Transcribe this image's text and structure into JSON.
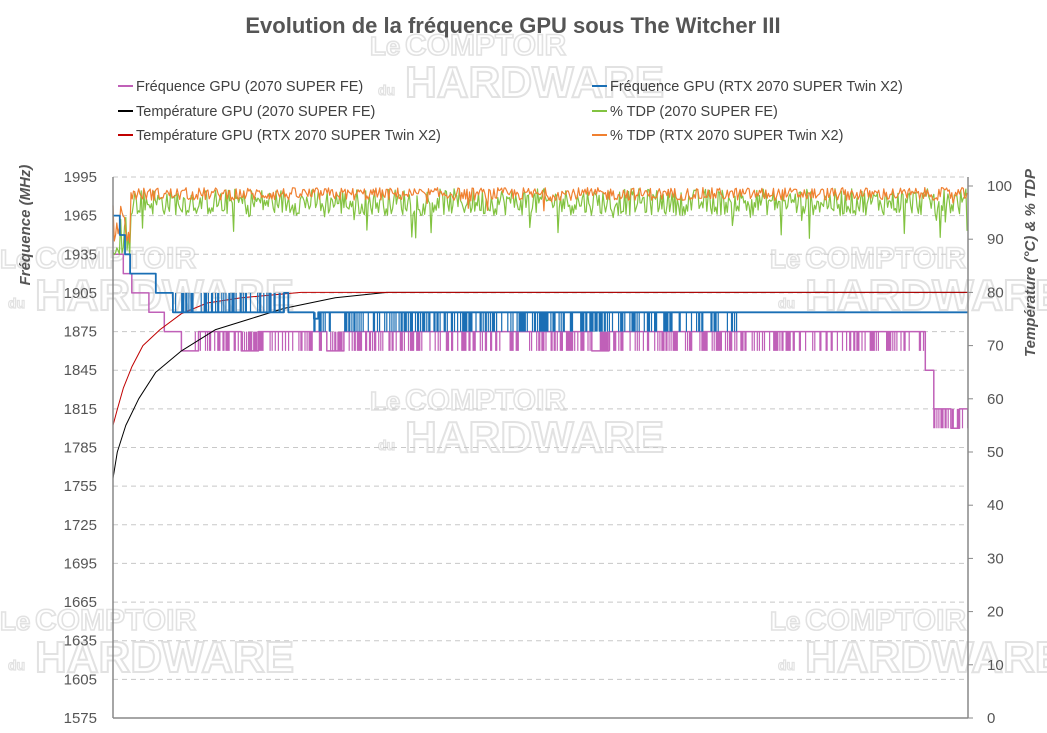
{
  "watermark": {
    "le": "Le",
    "comptoir": "COMPTOIR",
    "du": "du",
    "hardware": "HARDWARE"
  },
  "chart_data": {
    "type": "line",
    "title": "Evolution de la fréquence GPU sous The Witcher III",
    "y_left_label": "Fréquence (MHz)",
    "y_right_label": "Température (°C) & % TDP",
    "y_left_ticks": [
      "1575",
      "1605",
      "1635",
      "1665",
      "1695",
      "1725",
      "1755",
      "1785",
      "1815",
      "1845",
      "1875",
      "1905",
      "1935",
      "1965",
      "1995"
    ],
    "y_left_range": [
      1575,
      1995
    ],
    "y_right_ticks": [
      "0",
      "10",
      "20",
      "30",
      "40",
      "50",
      "60",
      "70",
      "80",
      "90",
      "100"
    ],
    "y_right_range": [
      0,
      102
    ],
    "x_range": [
      0,
      1000
    ],
    "legend_position": "top",
    "series": [
      {
        "key": "freq_fe",
        "name": "Fréquence GPU (2070 SUPER FE)",
        "color": "#c060b8",
        "axis": "left",
        "width": 1.5
      },
      {
        "key": "freq_twin",
        "name": "Fréquence GPU (RTX 2070 SUPER Twin X2)",
        "color": "#1a6fb5",
        "axis": "left",
        "width": 1.8
      },
      {
        "key": "temp_fe",
        "name": "Température GPU (2070 SUPER FE)",
        "color": "#000000",
        "axis": "right",
        "width": 1
      },
      {
        "key": "tdp_fe",
        "name": "% TDP (2070 SUPER FE)",
        "color": "#82c341",
        "axis": "right",
        "width": 1.2
      },
      {
        "key": "temp_twin",
        "name": "Température GPU (RTX 2070 SUPER Twin X2)",
        "color": "#c00000",
        "axis": "right",
        "width": 1
      },
      {
        "key": "tdp_twin",
        "name": "% TDP (RTX 2070 SUPER Twin X2)",
        "color": "#f08030",
        "axis": "right",
        "width": 1.2
      }
    ],
    "freq_fe": {
      "segments": [
        [
          0,
          1935
        ],
        [
          12,
          1935
        ],
        [
          12,
          1920
        ],
        [
          22,
          1920
        ],
        [
          22,
          1905
        ],
        [
          42,
          1905
        ],
        [
          42,
          1890
        ],
        [
          60,
          1890
        ],
        [
          60,
          1875
        ],
        [
          80,
          1875
        ],
        [
          80,
          1860
        ],
        [
          100,
          1860
        ],
        [
          100,
          1875
        ],
        [
          150,
          1875
        ],
        [
          150,
          1860
        ],
        [
          170,
          1860
        ],
        [
          170,
          1875
        ],
        [
          250,
          1875
        ],
        [
          250,
          1860
        ],
        [
          270,
          1860
        ],
        [
          270,
          1875
        ],
        [
          560,
          1875
        ],
        [
          560,
          1860
        ],
        [
          580,
          1860
        ],
        [
          580,
          1875
        ],
        [
          950,
          1875
        ],
        [
          950,
          1845
        ],
        [
          960,
          1845
        ],
        [
          960,
          1815
        ],
        [
          980,
          1815
        ],
        [
          980,
          1800
        ],
        [
          990,
          1800
        ],
        [
          990,
          1815
        ],
        [
          1000,
          1815
        ]
      ],
      "noise_ranges": [
        [
          95,
          300,
          1860,
          1875
        ],
        [
          300,
          560,
          1860,
          1875
        ],
        [
          570,
          950,
          1860,
          1875
        ],
        [
          960,
          1000,
          1800,
          1815
        ]
      ]
    },
    "freq_twin": {
      "segments": [
        [
          0,
          1965
        ],
        [
          8,
          1965
        ],
        [
          8,
          1950
        ],
        [
          14,
          1950
        ],
        [
          14,
          1935
        ],
        [
          20,
          1935
        ],
        [
          20,
          1920
        ],
        [
          50,
          1920
        ],
        [
          50,
          1905
        ],
        [
          70,
          1905
        ],
        [
          70,
          1890
        ],
        [
          200,
          1890
        ],
        [
          200,
          1905
        ],
        [
          205,
          1905
        ],
        [
          205,
          1890
        ],
        [
          235,
          1890
        ],
        [
          235,
          1885
        ],
        [
          240,
          1885
        ],
        [
          240,
          1890
        ],
        [
          1000,
          1890
        ]
      ],
      "noise_ranges": [
        [
          72,
          205,
          1890,
          1905
        ],
        [
          235,
          730,
          1875,
          1890
        ]
      ]
    },
    "temp_fe": {
      "points": [
        [
          0,
          45
        ],
        [
          5,
          50
        ],
        [
          15,
          55
        ],
        [
          30,
          60
        ],
        [
          50,
          65
        ],
        [
          80,
          69
        ],
        [
          120,
          73
        ],
        [
          160,
          75
        ],
        [
          200,
          77
        ],
        [
          260,
          79
        ],
        [
          320,
          80
        ],
        [
          1000,
          80
        ]
      ]
    },
    "temp_twin": {
      "points": [
        [
          0,
          55
        ],
        [
          5,
          58
        ],
        [
          12,
          62
        ],
        [
          22,
          66
        ],
        [
          35,
          70
        ],
        [
          55,
          73
        ],
        [
          80,
          76
        ],
        [
          110,
          78
        ],
        [
          150,
          79
        ],
        [
          220,
          80
        ],
        [
          1000,
          80
        ]
      ]
    },
    "tdp_fe": {
      "base": 97,
      "amp": 2.5,
      "drop_prob": 0.06,
      "drop_min": 90
    },
    "tdp_twin": {
      "base": 98.5,
      "amp": 1.2,
      "drop_prob": 0.03,
      "drop_min": 95
    }
  }
}
